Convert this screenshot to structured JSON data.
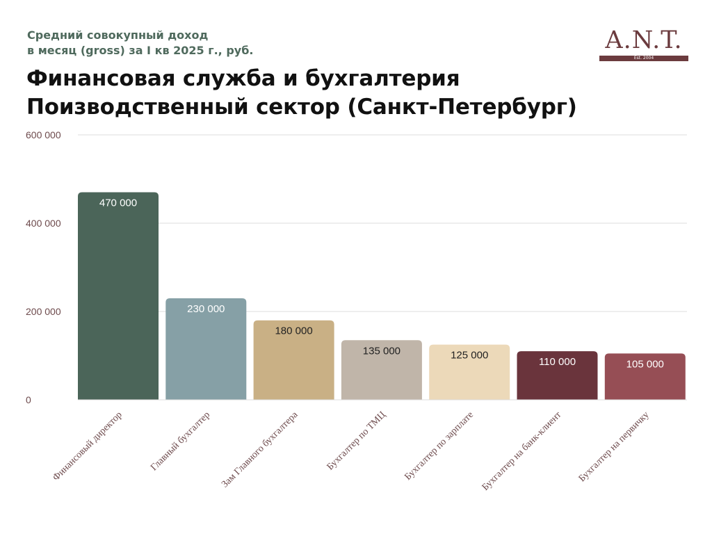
{
  "header": {
    "subtitle_line1": "Средний совокупный доход",
    "subtitle_line2": "в месяц (gross) за I кв 2025 г., руб.",
    "title_line1": "Финансовая служба и бухгалтерия",
    "title_line2": "Поизводственный сектор (Санкт-Петербург)"
  },
  "logo": {
    "text": "A.N.T.",
    "est": "Est. 2004",
    "color": "#6b3b3e"
  },
  "chart_data": {
    "type": "bar",
    "title": "",
    "xlabel": "",
    "ylabel": "",
    "ylim": [
      0,
      600000
    ],
    "yticks": [
      0,
      200000,
      400000,
      600000
    ],
    "ytick_labels": [
      "0",
      "200 000",
      "400 000",
      "600 000"
    ],
    "grid": true,
    "categories": [
      "Финансовый директор",
      "Главный бухгалтер",
      "Зам Главного бухгалтера",
      "Бухгалтер по ТМЦ",
      "Бухгалтер по зарплате",
      "Бухгалтер на банк-клиент",
      "Бухгалтер на первичку"
    ],
    "values": [
      470000,
      230000,
      180000,
      135000,
      125000,
      110000,
      105000
    ],
    "value_labels": [
      "470 000",
      "230 000",
      "180 000",
      "135 000",
      "125 000",
      "110 000",
      "105 000"
    ],
    "colors": [
      "#4b6559",
      "#86a0a6",
      "#c9b085",
      "#c0b5a9",
      "#ecd9b9",
      "#6a343c",
      "#964e55"
    ],
    "label_colors": [
      "#ffffff",
      "#ffffff",
      "#222222",
      "#222222",
      "#222222",
      "#ffffff",
      "#ffffff"
    ]
  }
}
